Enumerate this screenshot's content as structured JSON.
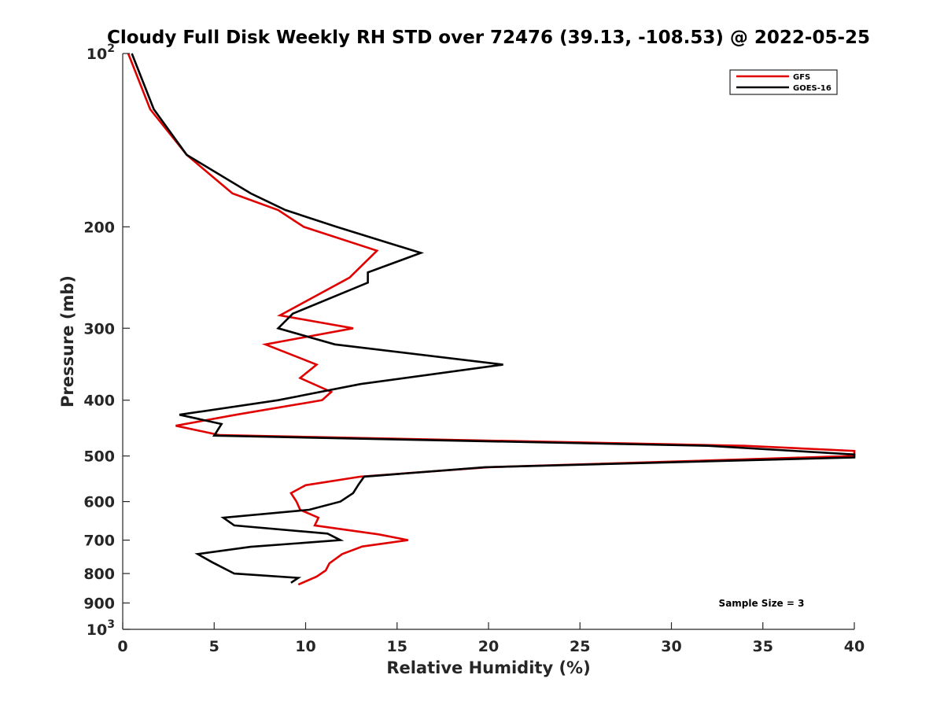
{
  "chart_data": {
    "type": "line",
    "title": "Cloudy Full Disk Weekly RH STD over 72476 (39.13, -108.53) @ 2022-05-25",
    "xlabel": "Relative Humidity (%)",
    "ylabel": "Pressure (mb)",
    "xlim": [
      0,
      40
    ],
    "ylim": [
      100,
      1000
    ],
    "y_scale": "log",
    "y_reversed": true,
    "grid": false,
    "legend_position": "top-right",
    "x_ticks": [
      0,
      5,
      10,
      15,
      20,
      25,
      30,
      35,
      40
    ],
    "x_tick_labels": [
      "0",
      "5",
      "10",
      "15",
      "20",
      "25",
      "30",
      "35",
      "40"
    ],
    "y_ticks": [
      100,
      200,
      300,
      400,
      500,
      600,
      700,
      800,
      900,
      1000
    ],
    "y_tick_labels": [
      {
        "base": "10",
        "exp": "2"
      },
      {
        "base": "200",
        "exp": ""
      },
      {
        "base": "300",
        "exp": ""
      },
      {
        "base": "400",
        "exp": ""
      },
      {
        "base": "500",
        "exp": ""
      },
      {
        "base": "600",
        "exp": ""
      },
      {
        "base": "700",
        "exp": ""
      },
      {
        "base": "800",
        "exp": ""
      },
      {
        "base": "900",
        "exp": ""
      },
      {
        "base": "10",
        "exp": "3"
      }
    ],
    "annotation": "Sample Size = 3",
    "series": [
      {
        "name": "GFS",
        "color": "#e00000",
        "points": [
          [
            0.3,
            100
          ],
          [
            1.5,
            125
          ],
          [
            3.5,
            150
          ],
          [
            6.0,
            175
          ],
          [
            8.5,
            187
          ],
          [
            9.9,
            200
          ],
          [
            13.9,
            220
          ],
          [
            12.4,
            245
          ],
          [
            8.6,
            285
          ],
          [
            12.6,
            300
          ],
          [
            7.8,
            320
          ],
          [
            10.6,
            347
          ],
          [
            9.7,
            366
          ],
          [
            11.4,
            387
          ],
          [
            10.9,
            400
          ],
          [
            6.2,
            424
          ],
          [
            2.9,
            443
          ],
          [
            5.3,
            460
          ],
          [
            34.0,
            480
          ],
          [
            40.0,
            490
          ],
          [
            40.0,
            500
          ],
          [
            20.0,
            523
          ],
          [
            13.0,
            543
          ],
          [
            10.0,
            562
          ],
          [
            9.2,
            580
          ],
          [
            9.5,
            600
          ],
          [
            9.7,
            620
          ],
          [
            10.7,
            640
          ],
          [
            10.5,
            660
          ],
          [
            14.0,
            684
          ],
          [
            15.6,
            700
          ],
          [
            13.1,
            718
          ],
          [
            12.0,
            740
          ],
          [
            11.3,
            768
          ],
          [
            11.1,
            790
          ],
          [
            10.6,
            810
          ],
          [
            9.6,
            836
          ]
        ]
      },
      {
        "name": "GOES-16",
        "color": "#000000",
        "points": [
          [
            0.5,
            100
          ],
          [
            1.7,
            125
          ],
          [
            3.5,
            150
          ],
          [
            7.0,
            175
          ],
          [
            8.9,
            187
          ],
          [
            11.7,
            200
          ],
          [
            16.3,
            222
          ],
          [
            13.4,
            240
          ],
          [
            13.4,
            250
          ],
          [
            9.3,
            283
          ],
          [
            8.5,
            300
          ],
          [
            11.6,
            320
          ],
          [
            20.8,
            347
          ],
          [
            13.0,
            375
          ],
          [
            8.5,
            400
          ],
          [
            3.1,
            424
          ],
          [
            5.4,
            440
          ],
          [
            5.0,
            461
          ],
          [
            32.0,
            480
          ],
          [
            40.0,
            497
          ],
          [
            40.0,
            503
          ],
          [
            19.8,
            523
          ],
          [
            13.2,
            543
          ],
          [
            12.9,
            560
          ],
          [
            12.6,
            580
          ],
          [
            11.9,
            600
          ],
          [
            10.2,
            620
          ],
          [
            5.5,
            640
          ],
          [
            6.1,
            660
          ],
          [
            11.2,
            682
          ],
          [
            11.9,
            700
          ],
          [
            7.0,
            719
          ],
          [
            4.1,
            740
          ],
          [
            4.9,
            765
          ],
          [
            6.1,
            800
          ],
          [
            9.6,
            814
          ],
          [
            9.2,
            830
          ]
        ]
      }
    ]
  }
}
